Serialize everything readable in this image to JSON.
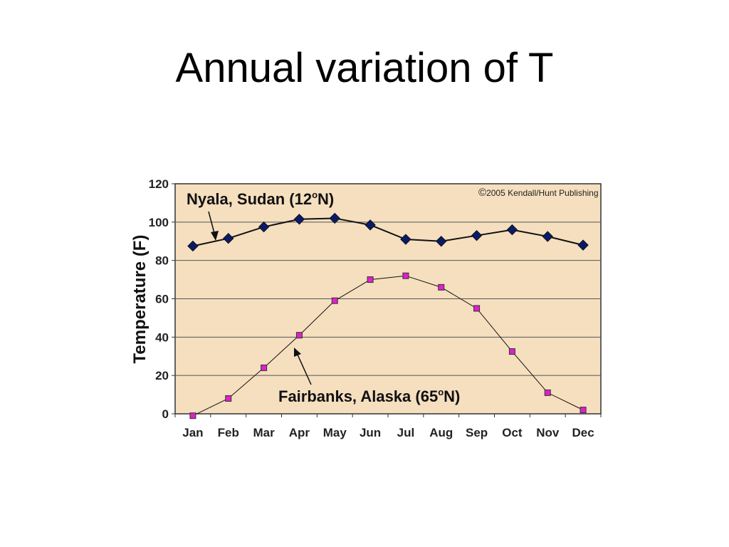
{
  "slide": {
    "title": "Annual variation of T"
  },
  "chart_data": {
    "type": "line",
    "categories": [
      "Jan",
      "Feb",
      "Mar",
      "Apr",
      "May",
      "Jun",
      "Jul",
      "Aug",
      "Sep",
      "Oct",
      "Nov",
      "Dec"
    ],
    "ylabel": "Temperature (F)",
    "ylim": [
      0,
      120
    ],
    "yticks": [
      0,
      20,
      40,
      60,
      80,
      100,
      120
    ],
    "grid": true,
    "plot_background": "#f5dfbf",
    "copyright": "2005 Kendall/Hunt Publishing",
    "series": [
      {
        "label_prefix": "Nyala, Sudan (12",
        "label_suffix": "N)",
        "degree_mark": "o",
        "color": "#0a1a6b",
        "marker": "diamond",
        "values": [
          87.5,
          91.5,
          97.5,
          101.5,
          102,
          98.5,
          91,
          90,
          93,
          96,
          92.5,
          88
        ]
      },
      {
        "label_prefix": "Fairbanks, Alaska (65",
        "label_suffix": "N)",
        "degree_mark": "o",
        "color": "#e020c8",
        "marker": "square",
        "values": [
          -1,
          8,
          24,
          41,
          59,
          70,
          72,
          66,
          55,
          32.5,
          11,
          2
        ]
      }
    ]
  }
}
